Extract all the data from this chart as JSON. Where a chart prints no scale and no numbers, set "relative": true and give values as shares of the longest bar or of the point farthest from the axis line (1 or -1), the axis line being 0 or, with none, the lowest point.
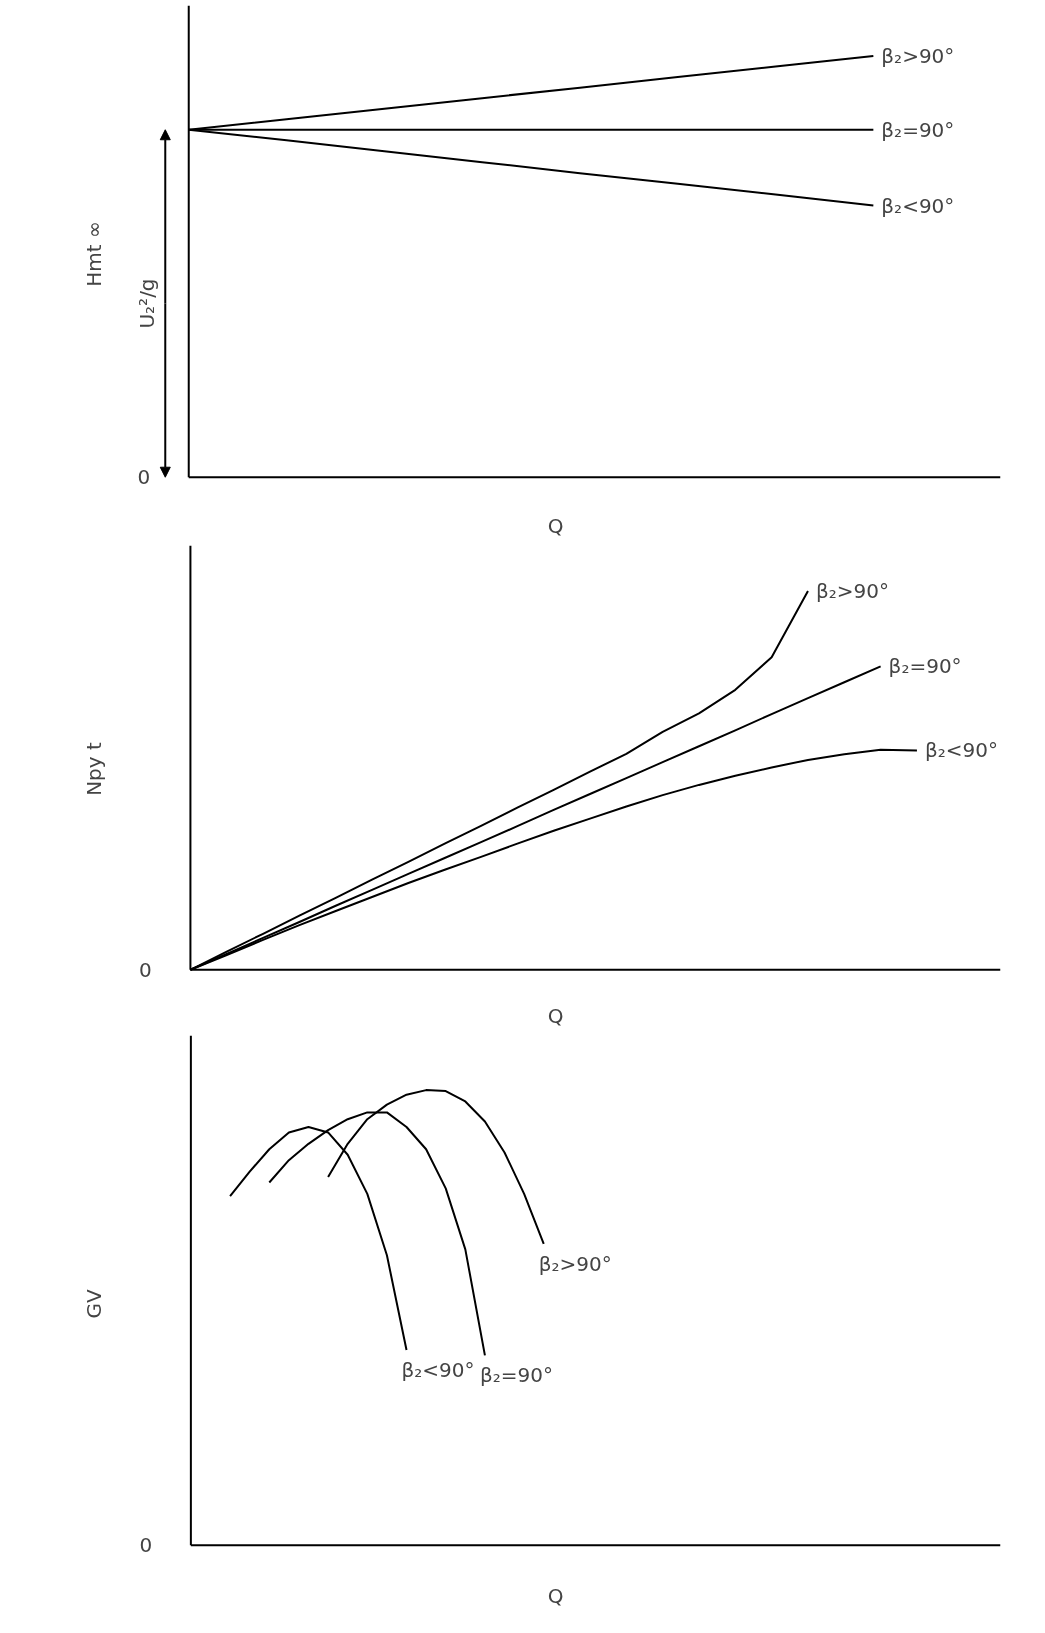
{
  "chart_data": [
    {
      "type": "line",
      "relative": true,
      "ylabel": "Hmt ∞",
      "xlabel": "Q",
      "categories": [
        null,
        null,
        null,
        null,
        null,
        null,
        null,
        null,
        null
      ],
      "grid": false,
      "legend": false,
      "marker": "none",
      "line_style": "solid",
      "series": [
        {
          "name": "β₂>90°",
          "color": "#000000",
          "values": [
            0.825,
            0.85,
            0.875,
            0.9,
            0.925,
            0.95,
            0.975,
            1.0,
            null
          ]
        },
        {
          "name": "β₂=90°",
          "color": "#000000",
          "values": [
            0.825,
            0.825,
            0.825,
            0.825,
            0.825,
            0.825,
            0.825,
            0.825,
            null
          ]
        },
        {
          "name": "β₂<90°",
          "color": "#000000",
          "values": [
            0.825,
            0.8,
            0.774,
            0.748,
            0.722,
            0.697,
            0.671,
            0.645,
            null
          ]
        }
      ],
      "annotations": [
        "0",
        "U₂²/g"
      ]
    },
    {
      "type": "line",
      "relative": true,
      "ylabel": "Npy t",
      "xlabel": "Q",
      "categories": [
        null,
        null,
        null,
        null,
        null,
        null,
        null,
        null,
        null,
        null,
        null,
        null,
        null,
        null,
        null,
        null,
        null,
        null,
        null,
        null,
        null,
        null,
        null
      ],
      "grid": false,
      "legend": false,
      "marker": "none",
      "line_style": "solid",
      "series": [
        {
          "name": "β₂>90°",
          "color": "#000000",
          "values": [
            0,
            0.048,
            0.095,
            0.143,
            0.19,
            0.238,
            0.285,
            0.333,
            0.38,
            0.428,
            0.475,
            0.523,
            0.57,
            0.628,
            0.677,
            0.739,
            0.825,
            1.0,
            null,
            null,
            null,
            null,
            null
          ]
        },
        {
          "name": "β₂=90°",
          "color": "#000000",
          "values": [
            0,
            0.042,
            0.084,
            0.126,
            0.169,
            0.211,
            0.253,
            0.295,
            0.337,
            0.379,
            0.422,
            0.464,
            0.506,
            0.548,
            0.59,
            0.632,
            0.675,
            0.717,
            0.759,
            0.801,
            null,
            null,
            null
          ]
        },
        {
          "name": "β₂<90°",
          "color": "#000000",
          "values": [
            0,
            0.039,
            0.079,
            0.118,
            0.155,
            0.192,
            0.229,
            0.264,
            0.298,
            0.333,
            0.367,
            0.399,
            0.431,
            0.461,
            0.488,
            0.512,
            0.534,
            0.554,
            0.569,
            0.581,
            0.579,
            null,
            null
          ]
        }
      ],
      "annotations": [
        "0"
      ]
    },
    {
      "type": "line",
      "relative": true,
      "ylabel": "GV",
      "xlabel": "Q",
      "categories": [
        null,
        null,
        null,
        null,
        null,
        null,
        null,
        null,
        null,
        null,
        null,
        null,
        null,
        null,
        null,
        null,
        null,
        null,
        null,
        null,
        null,
        null,
        null,
        null,
        null,
        null,
        null,
        null,
        null,
        null,
        null,
        null,
        null,
        null,
        null,
        null,
        null,
        null,
        null,
        null,
        null,
        null
      ],
      "grid": false,
      "legend": false,
      "marker": "none",
      "line_style": "solid",
      "series": [
        {
          "name": "β₂>90°",
          "color": "#000000",
          "values": [
            null,
            null,
            null,
            null,
            null,
            null,
            null,
            0.809,
            0.882,
            0.936,
            0.968,
            0.99,
            1.0,
            0.998,
            0.975,
            0.931,
            0.863,
            0.772,
            0.662,
            null,
            null,
            null,
            null,
            null,
            null,
            null,
            null,
            null,
            null,
            null,
            null,
            null,
            null,
            null,
            null,
            null,
            null,
            null,
            null,
            null,
            null,
            null
          ]
        },
        {
          "name": "β₂=90°",
          "color": "#000000",
          "values": [
            null,
            null,
            null,
            null,
            0.797,
            0.846,
            0.882,
            0.912,
            0.936,
            0.951,
            0.951,
            0.919,
            0.87,
            0.784,
            0.65,
            0.417,
            null,
            null,
            null,
            null,
            null,
            null,
            null,
            null,
            null,
            null,
            null,
            null,
            null,
            null,
            null,
            null,
            null,
            null,
            null,
            null,
            null,
            null,
            null,
            null,
            null,
            null
          ]
        },
        {
          "name": "β₂<90°",
          "color": "#000000",
          "values": [
            null,
            null,
            0.767,
            0.821,
            0.87,
            0.907,
            0.919,
            0.907,
            0.858,
            0.772,
            0.637,
            0.429,
            null,
            null,
            null,
            null,
            null,
            null,
            null,
            null,
            null,
            null,
            null,
            null,
            null,
            null,
            null,
            null,
            null,
            null,
            null,
            null,
            null,
            null,
            null,
            null,
            null,
            null,
            null,
            null,
            null,
            null
          ]
        }
      ],
      "annotations": [
        "0"
      ]
    }
  ]
}
